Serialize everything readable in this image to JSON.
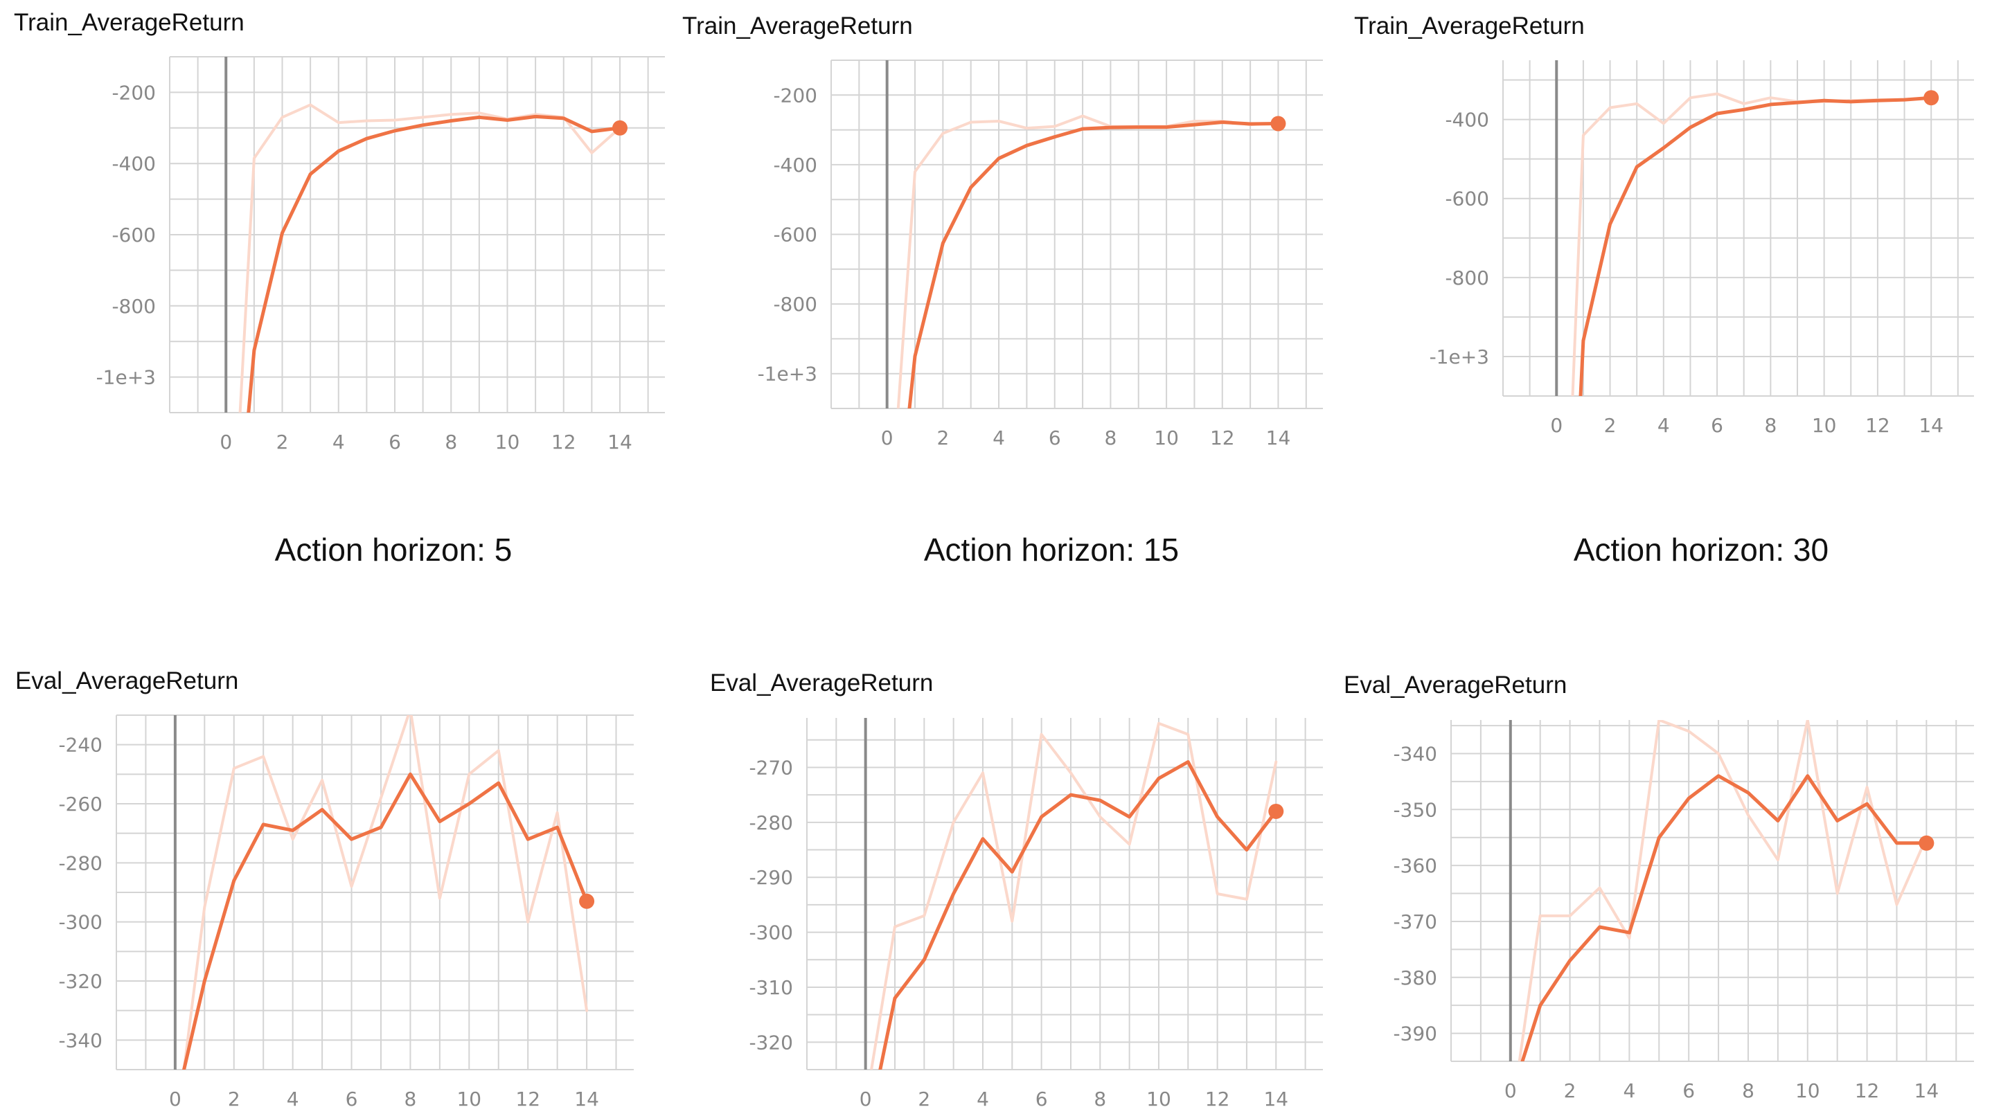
{
  "colors": {
    "main": "#ef7345",
    "raw": "#fbd8cb",
    "grid": "#d4d4d4",
    "axis": "#8a8a8a",
    "text": "#888888"
  },
  "captions": [
    "Action horizon: 5",
    "Action horizon: 15",
    "Action horizon: 30"
  ],
  "chart_data": [
    {
      "type": "line",
      "title": "Train_AverageReturn",
      "xlabel": "",
      "ylabel": "",
      "xlim": [
        -2,
        15.6
      ],
      "ylim": [
        -1100,
        -100
      ],
      "x_ticks": [
        0,
        2,
        4,
        6,
        8,
        10,
        12,
        14
      ],
      "y_ticks": [
        -200,
        -400,
        -600,
        -800,
        -1000
      ],
      "y_tick_labels": [
        "-200",
        "-400",
        "-600",
        "-800",
        "-1e+3"
      ],
      "grid": true,
      "legend": "none",
      "series": [
        {
          "role": "raw",
          "x": [
            0.5,
            1,
            2,
            3,
            4,
            5,
            6,
            7,
            8,
            9,
            10,
            11,
            12,
            13,
            14
          ],
          "y": [
            -1100,
            -385,
            -270,
            -235,
            -285,
            -280,
            -278,
            -270,
            -262,
            -258,
            -275,
            -262,
            -270,
            -370,
            -300
          ]
        },
        {
          "role": "smoothed",
          "x": [
            0.8,
            1,
            2,
            3,
            4,
            5,
            6,
            7,
            8,
            9,
            10,
            11,
            12,
            13,
            14
          ],
          "y": [
            -1100,
            -925,
            -595,
            -430,
            -365,
            -330,
            -308,
            -292,
            -280,
            -270,
            -278,
            -268,
            -273,
            -310,
            -300
          ]
        }
      ]
    },
    {
      "type": "line",
      "title": "Train_AverageReturn",
      "xlabel": "",
      "ylabel": "",
      "xlim": [
        -2,
        15.6
      ],
      "ylim": [
        -1100,
        -100
      ],
      "x_ticks": [
        0,
        2,
        4,
        6,
        8,
        10,
        12,
        14
      ],
      "y_ticks": [
        -200,
        -400,
        -600,
        -800,
        -1000
      ],
      "y_tick_labels": [
        "-200",
        "-400",
        "-600",
        "-800",
        "-1e+3"
      ],
      "grid": true,
      "legend": "none",
      "series": [
        {
          "role": "raw",
          "x": [
            0.4,
            1,
            2,
            3,
            4,
            5,
            6,
            7,
            8,
            9,
            10,
            11,
            12,
            13,
            14
          ],
          "y": [
            -1100,
            -420,
            -310,
            -278,
            -275,
            -295,
            -290,
            -260,
            -290,
            -290,
            -290,
            -275,
            -275,
            -285,
            -280
          ]
        },
        {
          "role": "smoothed",
          "x": [
            0.8,
            1,
            2,
            3,
            4,
            5,
            6,
            7,
            8,
            9,
            10,
            11,
            12,
            13,
            14
          ],
          "y": [
            -1100,
            -950,
            -625,
            -465,
            -382,
            -345,
            -320,
            -297,
            -293,
            -292,
            -292,
            -285,
            -278,
            -283,
            -282
          ]
        }
      ]
    },
    {
      "type": "line",
      "title": "Train_AverageReturn",
      "xlabel": "",
      "ylabel": "",
      "xlim": [
        -2,
        15.6
      ],
      "ylim": [
        -1100,
        -250
      ],
      "x_ticks": [
        0,
        2,
        4,
        6,
        8,
        10,
        12,
        14
      ],
      "y_ticks": [
        -400,
        -600,
        -800,
        -1000
      ],
      "y_tick_labels": [
        "-400",
        "-600",
        "-800",
        "-1e+3"
      ],
      "grid": true,
      "legend": "none",
      "series": [
        {
          "role": "raw",
          "x": [
            0.6,
            1,
            2,
            3,
            4,
            5,
            6,
            7,
            8,
            9,
            10,
            11,
            12,
            13,
            14
          ],
          "y": [
            -1100,
            -440,
            -370,
            -360,
            -410,
            -345,
            -335,
            -360,
            -345,
            -355,
            -355,
            -352,
            -350,
            -350,
            -345
          ]
        },
        {
          "role": "smoothed",
          "x": [
            0.9,
            1,
            2,
            3,
            4,
            5,
            6,
            7,
            8,
            9,
            10,
            11,
            12,
            13,
            14
          ],
          "y": [
            -1100,
            -960,
            -665,
            -520,
            -472,
            -420,
            -385,
            -375,
            -362,
            -357,
            -352,
            -355,
            -352,
            -350,
            -345
          ]
        }
      ]
    },
    {
      "type": "line",
      "title": "Eval_AverageReturn",
      "xlabel": "",
      "ylabel": "",
      "xlim": [
        -2,
        15.6
      ],
      "ylim": [
        -350,
        -230
      ],
      "x_ticks": [
        0,
        2,
        4,
        6,
        8,
        10,
        12,
        14
      ],
      "y_ticks": [
        -240,
        -260,
        -280,
        -300,
        -320,
        -340
      ],
      "y_tick_labels": [
        "-240",
        "-260",
        "-280",
        "-300",
        "-320",
        "-340"
      ],
      "grid": true,
      "legend": "none",
      "series": [
        {
          "role": "raw",
          "x": [
            0.3,
            1,
            2,
            3,
            4,
            5,
            6,
            7,
            8,
            9,
            10,
            11,
            12,
            13,
            14
          ],
          "y": [
            -350,
            -295,
            -248,
            -244,
            -272,
            -252,
            -288,
            -258,
            -228,
            -292,
            -250,
            -242,
            -300,
            -263,
            -330
          ]
        },
        {
          "role": "smoothed",
          "x": [
            0.3,
            1,
            2,
            3,
            4,
            5,
            6,
            7,
            8,
            9,
            10,
            11,
            12,
            13,
            14
          ],
          "y": [
            -350,
            -320,
            -286,
            -267,
            -269,
            -262,
            -272,
            -268,
            -250,
            -266,
            -260,
            -253,
            -272,
            -268,
            -293
          ]
        }
      ]
    },
    {
      "type": "line",
      "title": "Eval_AverageReturn",
      "xlabel": "",
      "ylabel": "",
      "xlim": [
        -2,
        15.6
      ],
      "ylim": [
        -325,
        -261
      ],
      "x_ticks": [
        0,
        2,
        4,
        6,
        8,
        10,
        12,
        14
      ],
      "y_ticks": [
        -270,
        -280,
        -290,
        -300,
        -310,
        -320
      ],
      "y_tick_labels": [
        "-270",
        "-280",
        "-290",
        "-300",
        "-310",
        "-320"
      ],
      "grid": true,
      "legend": "none",
      "series": [
        {
          "role": "raw",
          "x": [
            0.2,
            1,
            2,
            3,
            4,
            5,
            6,
            7,
            8,
            9,
            10,
            11,
            12,
            13,
            14
          ],
          "y": [
            -325,
            -299,
            -297,
            -280,
            -271,
            -298,
            -264,
            -271,
            -279,
            -284,
            -262,
            -264,
            -293,
            -294,
            -269
          ]
        },
        {
          "role": "smoothed",
          "x": [
            0.5,
            1,
            2,
            3,
            4,
            5,
            6,
            7,
            8,
            9,
            10,
            11,
            12,
            13,
            14
          ],
          "y": [
            -325,
            -312,
            -305,
            -293,
            -283,
            -289,
            -279,
            -275,
            -276,
            -279,
            -272,
            -269,
            -279,
            -285,
            -278
          ]
        }
      ]
    },
    {
      "type": "line",
      "title": "Eval_AverageReturn",
      "xlabel": "",
      "ylabel": "",
      "xlim": [
        -2,
        15.6
      ],
      "ylim": [
        -395,
        -334
      ],
      "x_ticks": [
        0,
        2,
        4,
        6,
        8,
        10,
        12,
        14
      ],
      "y_ticks": [
        -340,
        -350,
        -360,
        -370,
        -380,
        -390
      ],
      "y_tick_labels": [
        "-340",
        "-350",
        "-360",
        "-370",
        "-380",
        "-390"
      ],
      "grid": true,
      "legend": "none",
      "series": [
        {
          "role": "raw",
          "x": [
            0.3,
            1,
            2,
            3,
            4,
            5,
            6,
            7,
            8,
            9,
            10,
            11,
            12,
            13,
            14
          ],
          "y": [
            -395,
            -369,
            -369,
            -364,
            -373,
            -334,
            -336,
            -340,
            -351,
            -359,
            -334,
            -365,
            -346,
            -367,
            -355
          ]
        },
        {
          "role": "smoothed",
          "x": [
            0.4,
            1,
            2,
            3,
            4,
            5,
            6,
            7,
            8,
            9,
            10,
            11,
            12,
            13,
            14
          ],
          "y": [
            -395,
            -385,
            -377,
            -371,
            -372,
            -355,
            -348,
            -344,
            -347,
            -352,
            -344,
            -352,
            -349,
            -356,
            -356
          ]
        }
      ]
    }
  ]
}
